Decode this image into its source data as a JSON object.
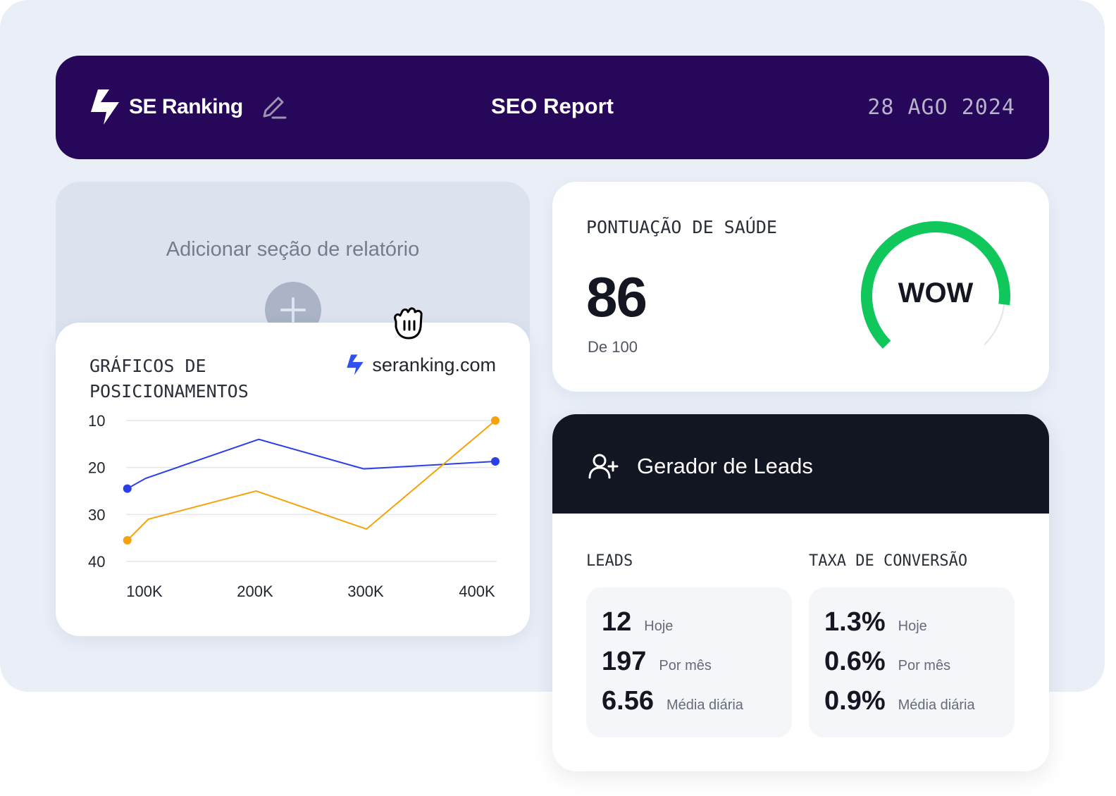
{
  "header": {
    "brand": "SE Ranking",
    "title": "SEO Report",
    "date": "28 AGO 2024"
  },
  "add_section": {
    "title": "Adicionar seção de relatório"
  },
  "positions_chart": {
    "title": "GRÁFICOS DE POSICIONAMENTOS",
    "brand": "seranking.com"
  },
  "chart_data": {
    "type": "line",
    "x": [
      "100K",
      "200K",
      "300K",
      "400K"
    ],
    "y_ticks": [
      10,
      20,
      30,
      40
    ],
    "ylim": [
      10,
      40
    ],
    "y_inverted": true,
    "series": [
      {
        "color": "#2a3fe8",
        "points": [
          [
            5,
            24.5
          ],
          [
            40,
            22.3
          ],
          [
            255,
            14.0
          ],
          [
            455,
            20.3
          ],
          [
            705,
            18.7
          ]
        ]
      },
      {
        "color": "#f5a20d",
        "points": [
          [
            5,
            35.5
          ],
          [
            45,
            31.0
          ],
          [
            250,
            25.0
          ],
          [
            460,
            33.1
          ],
          [
            705,
            10.0
          ]
        ]
      }
    ],
    "grid": true
  },
  "health": {
    "title": "PONTUAÇÃO DE SAÚDE",
    "score": "86",
    "max_label": "De 100",
    "gauge_label": "WOW",
    "value": 86,
    "max": 100,
    "color": "#0fc75b"
  },
  "leads": {
    "title": "Gerador de Leads",
    "leads_label": "LEADS",
    "conversion_label": "TAXA DE CONVERSÃO",
    "leads_stats": [
      {
        "value": "12",
        "label": "Hoje"
      },
      {
        "value": "197",
        "label": "Por mês"
      },
      {
        "value": "6.56",
        "label": "Média diária"
      }
    ],
    "conversion_stats": [
      {
        "value": "1.3%",
        "label": "Hoje"
      },
      {
        "value": "0.6%",
        "label": "Por mês"
      },
      {
        "value": "0.9%",
        "label": "Média diária"
      }
    ]
  }
}
